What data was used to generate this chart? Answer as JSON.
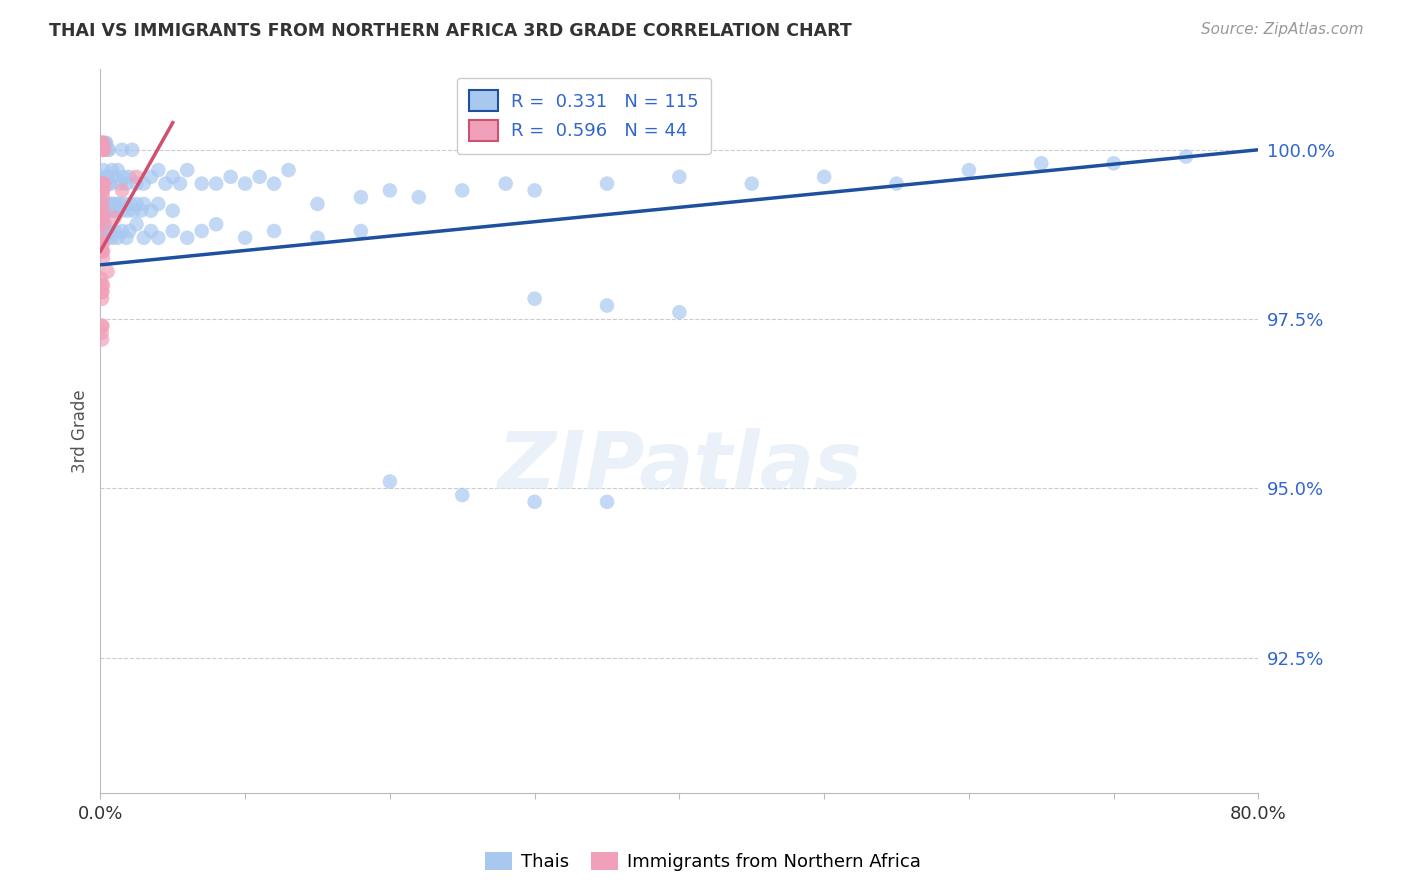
{
  "title": "THAI VS IMMIGRANTS FROM NORTHERN AFRICA 3RD GRADE CORRELATION CHART",
  "source": "Source: ZipAtlas.com",
  "ylabel": "3rd Grade",
  "xmin": 0.0,
  "xmax": 80.0,
  "ymin": 90.5,
  "ymax": 101.2,
  "blue_R": 0.331,
  "blue_N": 115,
  "pink_R": 0.596,
  "pink_N": 44,
  "blue_color": "#A8C8F0",
  "pink_color": "#F0A0B8",
  "blue_line_color": "#1E50A0",
  "pink_line_color": "#D05070",
  "legend_blue_label": "Thais",
  "legend_pink_label": "Immigrants from Northern Africa",
  "yticks": [
    100.0,
    97.5,
    95.0,
    92.5
  ],
  "ytick_labels": [
    "100.0%",
    "97.5%",
    "95.0%",
    "92.5%"
  ],
  "blue_line_x0": 0.0,
  "blue_line_y0": 98.3,
  "blue_line_x1": 80.0,
  "blue_line_y1": 100.0,
  "pink_line_x0": 0.0,
  "pink_line_y0": 98.5,
  "pink_line_x1": 5.0,
  "pink_line_y1": 100.4,
  "blue_points": [
    [
      0.15,
      100.1
    ],
    [
      0.2,
      100.1
    ],
    [
      0.3,
      100.1
    ],
    [
      0.35,
      100.1
    ],
    [
      0.4,
      100.1
    ],
    [
      0.5,
      100.0
    ],
    [
      0.6,
      100.0
    ],
    [
      1.5,
      100.0
    ],
    [
      2.2,
      100.0
    ],
    [
      0.2,
      99.7
    ],
    [
      0.3,
      99.6
    ],
    [
      0.4,
      99.5
    ],
    [
      0.5,
      99.6
    ],
    [
      0.6,
      99.5
    ],
    [
      0.7,
      99.5
    ],
    [
      0.8,
      99.7
    ],
    [
      1.0,
      99.6
    ],
    [
      1.2,
      99.7
    ],
    [
      1.4,
      99.5
    ],
    [
      1.6,
      99.6
    ],
    [
      1.8,
      99.5
    ],
    [
      2.0,
      99.6
    ],
    [
      2.5,
      99.5
    ],
    [
      3.0,
      99.5
    ],
    [
      3.5,
      99.6
    ],
    [
      4.0,
      99.7
    ],
    [
      4.5,
      99.5
    ],
    [
      5.0,
      99.6
    ],
    [
      5.5,
      99.5
    ],
    [
      6.0,
      99.7
    ],
    [
      7.0,
      99.5
    ],
    [
      8.0,
      99.5
    ],
    [
      9.0,
      99.6
    ],
    [
      10.0,
      99.5
    ],
    [
      11.0,
      99.6
    ],
    [
      12.0,
      99.5
    ],
    [
      13.0,
      99.7
    ],
    [
      0.1,
      99.2
    ],
    [
      0.2,
      99.1
    ],
    [
      0.3,
      99.2
    ],
    [
      0.4,
      99.1
    ],
    [
      0.5,
      99.2
    ],
    [
      0.6,
      99.1
    ],
    [
      0.7,
      99.2
    ],
    [
      0.8,
      99.1
    ],
    [
      0.9,
      99.2
    ],
    [
      1.0,
      99.1
    ],
    [
      1.1,
      99.2
    ],
    [
      1.2,
      99.1
    ],
    [
      1.3,
      99.2
    ],
    [
      1.5,
      99.1
    ],
    [
      1.7,
      99.2
    ],
    [
      1.9,
      99.1
    ],
    [
      2.1,
      99.2
    ],
    [
      2.3,
      99.1
    ],
    [
      2.5,
      99.2
    ],
    [
      2.8,
      99.1
    ],
    [
      3.0,
      99.2
    ],
    [
      3.5,
      99.1
    ],
    [
      4.0,
      99.2
    ],
    [
      5.0,
      99.1
    ],
    [
      0.1,
      98.8
    ],
    [
      0.2,
      98.7
    ],
    [
      0.3,
      98.9
    ],
    [
      0.4,
      98.8
    ],
    [
      0.5,
      98.7
    ],
    [
      0.6,
      98.8
    ],
    [
      0.8,
      98.7
    ],
    [
      1.0,
      98.8
    ],
    [
      1.2,
      98.7
    ],
    [
      1.5,
      98.8
    ],
    [
      1.8,
      98.7
    ],
    [
      2.0,
      98.8
    ],
    [
      2.5,
      98.9
    ],
    [
      3.0,
      98.7
    ],
    [
      3.5,
      98.8
    ],
    [
      4.0,
      98.7
    ],
    [
      5.0,
      98.8
    ],
    [
      6.0,
      98.7
    ],
    [
      7.0,
      98.8
    ],
    [
      8.0,
      98.9
    ],
    [
      10.0,
      98.7
    ],
    [
      12.0,
      98.8
    ],
    [
      15.0,
      98.7
    ],
    [
      18.0,
      98.8
    ],
    [
      15.0,
      99.2
    ],
    [
      18.0,
      99.3
    ],
    [
      20.0,
      99.4
    ],
    [
      22.0,
      99.3
    ],
    [
      25.0,
      99.4
    ],
    [
      28.0,
      99.5
    ],
    [
      30.0,
      99.4
    ],
    [
      35.0,
      99.5
    ],
    [
      40.0,
      99.6
    ],
    [
      45.0,
      99.5
    ],
    [
      50.0,
      99.6
    ],
    [
      55.0,
      99.5
    ],
    [
      60.0,
      99.7
    ],
    [
      65.0,
      99.8
    ],
    [
      70.0,
      99.8
    ],
    [
      75.0,
      99.9
    ],
    [
      30.0,
      97.8
    ],
    [
      35.0,
      97.7
    ],
    [
      40.0,
      97.6
    ],
    [
      25.0,
      94.9
    ],
    [
      30.0,
      94.8
    ],
    [
      35.0,
      94.8
    ],
    [
      20.0,
      95.1
    ]
  ],
  "pink_points": [
    [
      0.05,
      100.1
    ],
    [
      0.08,
      100.1
    ],
    [
      0.1,
      100.1
    ],
    [
      0.12,
      100.1
    ],
    [
      0.15,
      100.1
    ],
    [
      0.18,
      100.0
    ],
    [
      0.2,
      100.0
    ],
    [
      0.25,
      100.0
    ],
    [
      0.05,
      99.5
    ],
    [
      0.08,
      99.4
    ],
    [
      0.1,
      99.5
    ],
    [
      0.12,
      99.4
    ],
    [
      0.15,
      99.5
    ],
    [
      0.18,
      99.3
    ],
    [
      0.2,
      99.4
    ],
    [
      0.25,
      99.5
    ],
    [
      0.05,
      99.1
    ],
    [
      0.07,
      99.0
    ],
    [
      0.1,
      99.2
    ],
    [
      0.12,
      98.9
    ],
    [
      0.15,
      99.0
    ],
    [
      0.2,
      99.1
    ],
    [
      0.25,
      98.9
    ],
    [
      0.05,
      98.6
    ],
    [
      0.07,
      98.5
    ],
    [
      0.1,
      98.7
    ],
    [
      0.12,
      98.5
    ],
    [
      0.15,
      98.6
    ],
    [
      0.18,
      98.4
    ],
    [
      0.2,
      98.5
    ],
    [
      0.05,
      98.1
    ],
    [
      0.08,
      97.9
    ],
    [
      0.1,
      98.0
    ],
    [
      0.12,
      97.8
    ],
    [
      0.15,
      97.9
    ],
    [
      0.18,
      98.0
    ],
    [
      0.08,
      97.4
    ],
    [
      0.1,
      97.3
    ],
    [
      0.12,
      97.2
    ],
    [
      0.15,
      97.4
    ],
    [
      0.5,
      98.2
    ],
    [
      1.0,
      99.0
    ],
    [
      1.5,
      99.4
    ],
    [
      2.5,
      99.6
    ]
  ]
}
